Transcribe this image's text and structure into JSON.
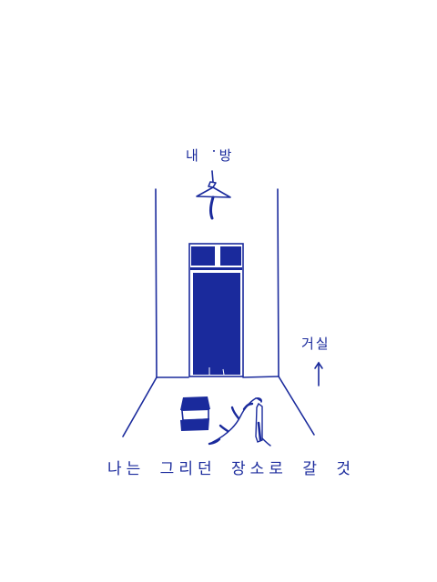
{
  "labels": {
    "title": "내 방",
    "side_room": "거실",
    "caption": "나는 그리던 장소로 갈 것"
  },
  "icons": {
    "lamp": "pendant-lamp-icon",
    "arrow": "arrow-up-icon",
    "stool": "stool-icon",
    "plant": "fallen-flower-icon"
  },
  "colors": {
    "ink": "#1a2a9c",
    "paper": "#ffffff"
  }
}
